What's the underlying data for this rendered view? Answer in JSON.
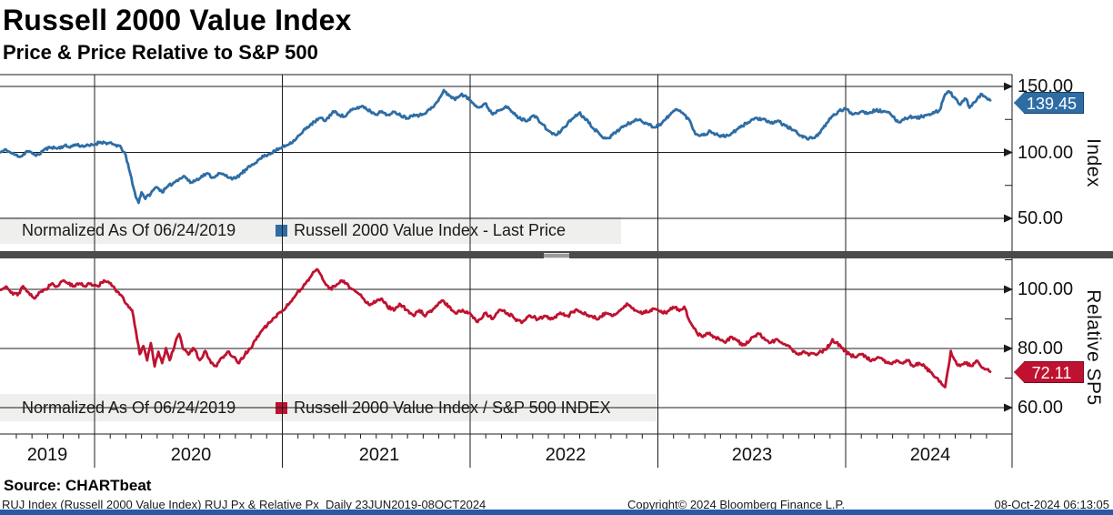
{
  "header": {
    "title": "Russell 2000 Value Index",
    "subtitle": "Price & Price Relative to S&P 500"
  },
  "colors": {
    "blue": "#2e6da4",
    "red": "#bf1231",
    "grid": "#1c1c1c",
    "legend_bg": "#efefed",
    "divider": "#4a4a4a",
    "bottom_bar": "#2859a8"
  },
  "x_axis": {
    "years": [
      "2019",
      "2020",
      "2021",
      "2022",
      "2023",
      "2024"
    ],
    "date_range": "23JUN2019-08OCT2024"
  },
  "footer": {
    "source": "Source: CHARTbeat",
    "left": "RUJ Index (Russell 2000 Value Index) RUJ Px & Relative Px  Daily 23JUN2019-08OCT2024",
    "center": "Copyright© 2024 Bloomberg Finance L.P.",
    "right": "08-Oct-2024 06:13:05"
  },
  "chart_data": [
    {
      "type": "line",
      "panel": "top",
      "series_name": "Russell 2000 Value Index - Last Price",
      "normalized_label": "Normalized As Of 06/24/2019",
      "axis_label": "Index",
      "last_value": 139.45,
      "last_value_label": "139.45",
      "color_key": "blue",
      "ylim": [
        25,
        160
      ],
      "yticks": [
        {
          "v": 150,
          "label": "150.00"
        },
        {
          "v": 100,
          "label": "100.00"
        },
        {
          "v": 50,
          "label": "50.00"
        }
      ],
      "minor_ticks": [
        125,
        75
      ],
      "noise": 1.1,
      "seed": 11,
      "keypoints": [
        [
          2019.497,
          100
        ],
        [
          2019.53,
          102
        ],
        [
          2019.55,
          100
        ],
        [
          2019.58,
          98
        ],
        [
          2019.61,
          97
        ],
        [
          2019.64,
          101
        ],
        [
          2019.67,
          99
        ],
        [
          2019.7,
          98
        ],
        [
          2019.73,
          102
        ],
        [
          2019.77,
          104
        ],
        [
          2019.8,
          103
        ],
        [
          2019.84,
          105
        ],
        [
          2019.87,
          104
        ],
        [
          2019.9,
          106
        ],
        [
          2019.93,
          105
        ],
        [
          2019.97,
          105
        ],
        [
          2020.0,
          106
        ],
        [
          2020.03,
          108
        ],
        [
          2020.07,
          107
        ],
        [
          2020.1,
          106
        ],
        [
          2020.13,
          105
        ],
        [
          2020.16,
          100
        ],
        [
          2020.19,
          84
        ],
        [
          2020.22,
          66
        ],
        [
          2020.235,
          62
        ],
        [
          2020.25,
          70
        ],
        [
          2020.27,
          65
        ],
        [
          2020.3,
          69
        ],
        [
          2020.33,
          74
        ],
        [
          2020.36,
          70
        ],
        [
          2020.39,
          74
        ],
        [
          2020.42,
          77
        ],
        [
          2020.45,
          80
        ],
        [
          2020.48,
          82
        ],
        [
          2020.51,
          77
        ],
        [
          2020.54,
          79
        ],
        [
          2020.57,
          82
        ],
        [
          2020.6,
          84
        ],
        [
          2020.63,
          81
        ],
        [
          2020.66,
          84
        ],
        [
          2020.69,
          83
        ],
        [
          2020.72,
          81
        ],
        [
          2020.75,
          80
        ],
        [
          2020.78,
          84
        ],
        [
          2020.81,
          87
        ],
        [
          2020.84,
          91
        ],
        [
          2020.87,
          94
        ],
        [
          2020.9,
          97
        ],
        [
          2020.93,
          99
        ],
        [
          2020.96,
          101
        ],
        [
          2021.0,
          104
        ],
        [
          2021.03,
          106
        ],
        [
          2021.06,
          109
        ],
        [
          2021.1,
          114
        ],
        [
          2021.13,
          119
        ],
        [
          2021.17,
          123
        ],
        [
          2021.2,
          126
        ],
        [
          2021.23,
          124
        ],
        [
          2021.27,
          131
        ],
        [
          2021.3,
          129
        ],
        [
          2021.33,
          127
        ],
        [
          2021.37,
          132
        ],
        [
          2021.4,
          134
        ],
        [
          2021.43,
          135
        ],
        [
          2021.47,
          131
        ],
        [
          2021.5,
          129
        ],
        [
          2021.53,
          131
        ],
        [
          2021.57,
          128
        ],
        [
          2021.6,
          131
        ],
        [
          2021.63,
          128
        ],
        [
          2021.67,
          126
        ],
        [
          2021.7,
          129
        ],
        [
          2021.73,
          128
        ],
        [
          2021.77,
          131
        ],
        [
          2021.8,
          134
        ],
        [
          2021.83,
          139
        ],
        [
          2021.86,
          147
        ],
        [
          2021.89,
          143
        ],
        [
          2021.92,
          140
        ],
        [
          2021.95,
          144
        ],
        [
          2021.98,
          142
        ],
        [
          2022.02,
          137
        ],
        [
          2022.05,
          134
        ],
        [
          2022.08,
          137
        ],
        [
          2022.12,
          129
        ],
        [
          2022.15,
          132
        ],
        [
          2022.19,
          135
        ],
        [
          2022.22,
          131
        ],
        [
          2022.26,
          126
        ],
        [
          2022.3,
          124
        ],
        [
          2022.34,
          128
        ],
        [
          2022.38,
          122
        ],
        [
          2022.42,
          116
        ],
        [
          2022.46,
          113
        ],
        [
          2022.5,
          119
        ],
        [
          2022.54,
          125
        ],
        [
          2022.58,
          130
        ],
        [
          2022.62,
          125
        ],
        [
          2022.66,
          118
        ],
        [
          2022.7,
          112
        ],
        [
          2022.74,
          111
        ],
        [
          2022.78,
          116
        ],
        [
          2022.82,
          120
        ],
        [
          2022.86,
          123
        ],
        [
          2022.9,
          125
        ],
        [
          2022.94,
          122
        ],
        [
          2022.98,
          119
        ],
        [
          2023.02,
          122
        ],
        [
          2023.06,
          128
        ],
        [
          2023.1,
          133
        ],
        [
          2023.13,
          130
        ],
        [
          2023.17,
          124
        ],
        [
          2023.2,
          114
        ],
        [
          2023.24,
          113
        ],
        [
          2023.28,
          116
        ],
        [
          2023.32,
          113
        ],
        [
          2023.36,
          112
        ],
        [
          2023.4,
          115
        ],
        [
          2023.44,
          119
        ],
        [
          2023.48,
          123
        ],
        [
          2023.52,
          126
        ],
        [
          2023.56,
          125
        ],
        [
          2023.6,
          122
        ],
        [
          2023.64,
          124
        ],
        [
          2023.68,
          120
        ],
        [
          2023.72,
          117
        ],
        [
          2023.76,
          113
        ],
        [
          2023.8,
          110
        ],
        [
          2023.84,
          112
        ],
        [
          2023.88,
          118
        ],
        [
          2023.92,
          126
        ],
        [
          2023.96,
          131
        ],
        [
          2024.0,
          133
        ],
        [
          2024.04,
          129
        ],
        [
          2024.08,
          131
        ],
        [
          2024.12,
          130
        ],
        [
          2024.16,
          132
        ],
        [
          2024.2,
          131
        ],
        [
          2024.24,
          129
        ],
        [
          2024.28,
          123
        ],
        [
          2024.31,
          125
        ],
        [
          2024.34,
          127
        ],
        [
          2024.38,
          126
        ],
        [
          2024.42,
          128
        ],
        [
          2024.46,
          129
        ],
        [
          2024.5,
          132
        ],
        [
          2024.53,
          144
        ],
        [
          2024.55,
          146
        ],
        [
          2024.58,
          142
        ],
        [
          2024.61,
          136
        ],
        [
          2024.64,
          141
        ],
        [
          2024.66,
          134
        ],
        [
          2024.69,
          138
        ],
        [
          2024.72,
          144
        ],
        [
          2024.75,
          141
        ],
        [
          2024.77,
          139.45
        ]
      ]
    },
    {
      "type": "line",
      "panel": "bottom",
      "series_name": "Russell 2000 Value Index / S&P 500 INDEX",
      "normalized_label": "Normalized As Of 06/24/2019",
      "axis_label": "Relative SP5",
      "last_value": 72.11,
      "last_value_label": "72.11",
      "color_key": "red",
      "ylim": [
        51,
        110
      ],
      "yticks": [
        {
          "v": 100,
          "label": "100.00"
        },
        {
          "v": 80,
          "label": "80.00"
        },
        {
          "v": 60,
          "label": "60.00"
        }
      ],
      "minor_ticks": [
        110,
        90,
        70
      ],
      "noise": 0.55,
      "seed": 29,
      "keypoints": [
        [
          2019.497,
          100
        ],
        [
          2019.53,
          101
        ],
        [
          2019.56,
          99
        ],
        [
          2019.59,
          98
        ],
        [
          2019.62,
          101
        ],
        [
          2019.65,
          99
        ],
        [
          2019.68,
          97
        ],
        [
          2019.71,
          99
        ],
        [
          2019.74,
          100
        ],
        [
          2019.77,
          102
        ],
        [
          2019.8,
          101
        ],
        [
          2019.83,
          103
        ],
        [
          2019.86,
          102
        ],
        [
          2019.89,
          101
        ],
        [
          2019.92,
          102
        ],
        [
          2019.95,
          101
        ],
        [
          2019.98,
          102
        ],
        [
          2020.02,
          101
        ],
        [
          2020.05,
          103
        ],
        [
          2020.08,
          102
        ],
        [
          2020.11,
          100
        ],
        [
          2020.14,
          98
        ],
        [
          2020.17,
          95
        ],
        [
          2020.2,
          93
        ],
        [
          2020.22,
          86
        ],
        [
          2020.24,
          78
        ],
        [
          2020.26,
          81
        ],
        [
          2020.28,
          76
        ],
        [
          2020.3,
          82
        ],
        [
          2020.32,
          74
        ],
        [
          2020.34,
          79
        ],
        [
          2020.36,
          75
        ],
        [
          2020.38,
          80
        ],
        [
          2020.4,
          76
        ],
        [
          2020.43,
          82
        ],
        [
          2020.45,
          85
        ],
        [
          2020.47,
          80
        ],
        [
          2020.5,
          78
        ],
        [
          2020.53,
          80
        ],
        [
          2020.56,
          76
        ],
        [
          2020.59,
          79
        ],
        [
          2020.62,
          75
        ],
        [
          2020.65,
          74
        ],
        [
          2020.68,
          77
        ],
        [
          2020.71,
          79
        ],
        [
          2020.74,
          77
        ],
        [
          2020.77,
          75
        ],
        [
          2020.8,
          78
        ],
        [
          2020.83,
          80
        ],
        [
          2020.86,
          83
        ],
        [
          2020.89,
          86
        ],
        [
          2020.92,
          88
        ],
        [
          2020.95,
          90
        ],
        [
          2020.98,
          92
        ],
        [
          2021.02,
          94
        ],
        [
          2021.05,
          96
        ],
        [
          2021.08,
          99
        ],
        [
          2021.11,
          101
        ],
        [
          2021.14,
          103
        ],
        [
          2021.17,
          106
        ],
        [
          2021.19,
          106.5
        ],
        [
          2021.22,
          103
        ],
        [
          2021.25,
          100
        ],
        [
          2021.28,
          101
        ],
        [
          2021.31,
          103
        ],
        [
          2021.34,
          102
        ],
        [
          2021.37,
          100
        ],
        [
          2021.4,
          99
        ],
        [
          2021.43,
          97
        ],
        [
          2021.46,
          95
        ],
        [
          2021.5,
          96
        ],
        [
          2021.53,
          97
        ],
        [
          2021.56,
          94
        ],
        [
          2021.6,
          93
        ],
        [
          2021.63,
          95
        ],
        [
          2021.66,
          93
        ],
        [
          2021.7,
          91
        ],
        [
          2021.73,
          93
        ],
        [
          2021.76,
          91
        ],
        [
          2021.8,
          93
        ],
        [
          2021.83,
          95
        ],
        [
          2021.86,
          96
        ],
        [
          2021.9,
          93
        ],
        [
          2021.93,
          92
        ],
        [
          2021.96,
          93
        ],
        [
          2022.0,
          92
        ],
        [
          2022.04,
          89
        ],
        [
          2022.08,
          92
        ],
        [
          2022.12,
          90
        ],
        [
          2022.16,
          93
        ],
        [
          2022.2,
          92
        ],
        [
          2022.24,
          90
        ],
        [
          2022.28,
          89
        ],
        [
          2022.32,
          91
        ],
        [
          2022.36,
          90
        ],
        [
          2022.4,
          91
        ],
        [
          2022.44,
          90
        ],
        [
          2022.48,
          92
        ],
        [
          2022.52,
          91
        ],
        [
          2022.56,
          93
        ],
        [
          2022.6,
          92
        ],
        [
          2022.64,
          91
        ],
        [
          2022.68,
          90
        ],
        [
          2022.72,
          92
        ],
        [
          2022.76,
          91
        ],
        [
          2022.8,
          93
        ],
        [
          2022.84,
          95
        ],
        [
          2022.88,
          93
        ],
        [
          2022.92,
          92
        ],
        [
          2022.96,
          93
        ],
        [
          2023.0,
          93
        ],
        [
          2023.04,
          92
        ],
        [
          2023.08,
          94
        ],
        [
          2023.12,
          93
        ],
        [
          2023.14,
          94
        ],
        [
          2023.18,
          88
        ],
        [
          2023.21,
          85
        ],
        [
          2023.24,
          84
        ],
        [
          2023.27,
          85
        ],
        [
          2023.3,
          84
        ],
        [
          2023.33,
          83
        ],
        [
          2023.36,
          82
        ],
        [
          2023.39,
          84
        ],
        [
          2023.42,
          83
        ],
        [
          2023.45,
          81
        ],
        [
          2023.48,
          82
        ],
        [
          2023.51,
          84
        ],
        [
          2023.54,
          85
        ],
        [
          2023.57,
          83
        ],
        [
          2023.6,
          82
        ],
        [
          2023.63,
          83
        ],
        [
          2023.66,
          82
        ],
        [
          2023.69,
          81
        ],
        [
          2023.72,
          79
        ],
        [
          2023.75,
          78
        ],
        [
          2023.78,
          79
        ],
        [
          2023.81,
          78
        ],
        [
          2023.84,
          78
        ],
        [
          2023.87,
          79
        ],
        [
          2023.9,
          80
        ],
        [
          2023.93,
          83
        ],
        [
          2023.95,
          82
        ],
        [
          2023.98,
          80
        ],
        [
          2024.02,
          78
        ],
        [
          2024.05,
          77
        ],
        [
          2024.08,
          78
        ],
        [
          2024.11,
          77
        ],
        [
          2024.14,
          76
        ],
        [
          2024.17,
          77
        ],
        [
          2024.2,
          76
        ],
        [
          2024.24,
          75
        ],
        [
          2024.27,
          76
        ],
        [
          2024.3,
          75
        ],
        [
          2024.33,
          76
        ],
        [
          2024.36,
          74
        ],
        [
          2024.39,
          75
        ],
        [
          2024.42,
          74
        ],
        [
          2024.45,
          72
        ],
        [
          2024.48,
          70
        ],
        [
          2024.51,
          68
        ],
        [
          2024.53,
          67
        ],
        [
          2024.56,
          79
        ],
        [
          2024.58,
          76
        ],
        [
          2024.61,
          74
        ],
        [
          2024.64,
          75
        ],
        [
          2024.67,
          74
        ],
        [
          2024.7,
          76
        ],
        [
          2024.72,
          74
        ],
        [
          2024.74,
          73
        ],
        [
          2024.77,
          72.11
        ]
      ]
    }
  ]
}
